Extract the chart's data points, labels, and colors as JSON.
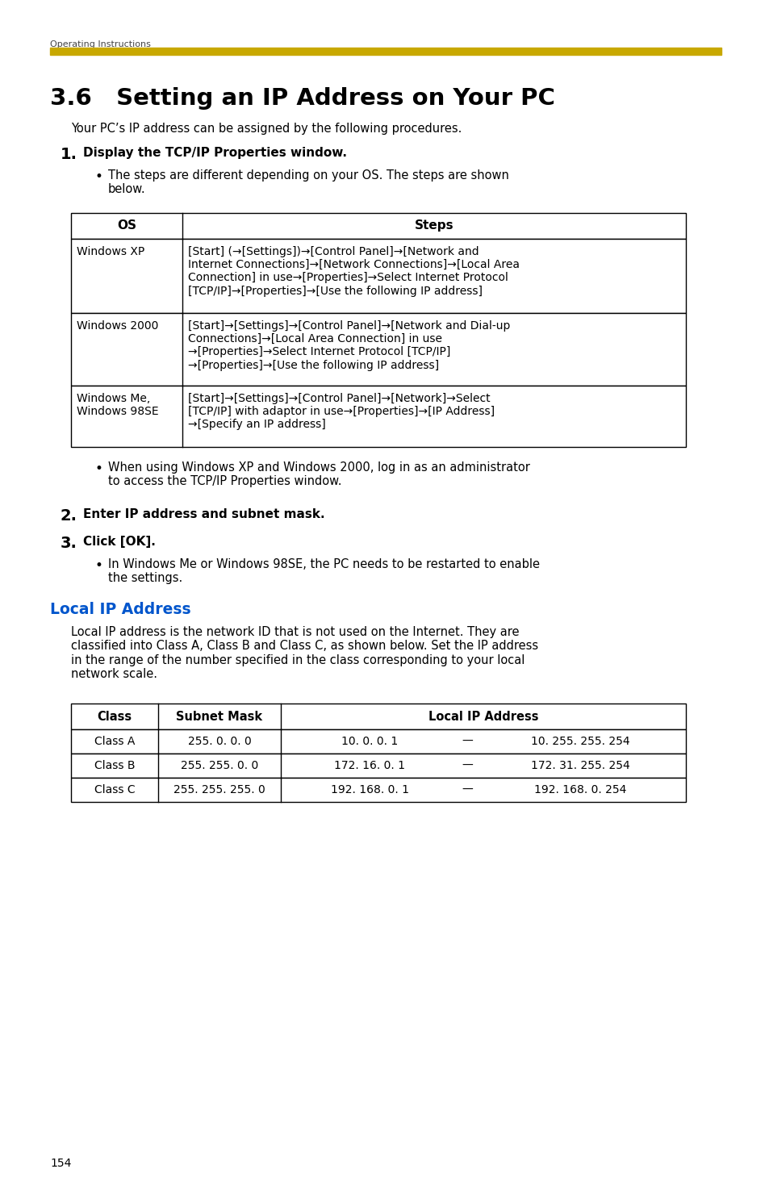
{
  "bg_color": "#ffffff",
  "header_text": "Operating Instructions",
  "bar_color": "#C8A800",
  "title": "3.6   Setting an IP Address on Your PC",
  "intro_text": "Your PC’s IP address can be assigned by the following procedures.",
  "step1_label": "1.",
  "step1_text": "Display the TCP/IP Properties window.",
  "bullet1_text": "The steps are different depending on your OS. The steps are shown\nbelow.",
  "table1_headers": [
    "OS",
    "Steps"
  ],
  "table1_rows": [
    [
      "Windows XP",
      "[Start] (→[Settings])→[Control Panel]→[Network and\nInternet Connections]→[Network Connections]→[Local Area\nConnection] in use→[Properties]→Select Internet Protocol\n[TCP/IP]→[Properties]→[Use the following IP address]"
    ],
    [
      "Windows 2000",
      "[Start]→[Settings]→[Control Panel]→[Network and Dial-up\nConnections]→[Local Area Connection] in use\n→[Properties]→Select Internet Protocol [TCP/IP]\n→[Properties]→[Use the following IP address]"
    ],
    [
      "Windows Me,\nWindows 98SE",
      "[Start]→[Settings]→[Control Panel]→[Network]→Select\n[TCP/IP] with adaptor in use→[Properties]→[IP Address]\n→[Specify an IP address]"
    ]
  ],
  "bullet2_text": "When using Windows XP and Windows 2000, log in as an administrator\nto access the TCP/IP Properties window.",
  "step2_label": "2.",
  "step2_text": "Enter IP address and subnet mask.",
  "step3_label": "3.",
  "step3_text": "Click [OK].",
  "bullet3_text": "In Windows Me or Windows 98SE, the PC needs to be restarted to enable\nthe settings.",
  "section2_title": "Local IP Address",
  "section2_color": "#0055CC",
  "section2_intro": "Local IP address is the network ID that is not used on the Internet. They are\nclassified into Class A, Class B and Class C, as shown below. Set the IP address\nin the range of the number specified in the class corresponding to your local\nnetwork scale.",
  "table2_headers": [
    "Class",
    "Subnet Mask",
    "Local IP Address"
  ],
  "table2_rows": [
    [
      "Class A",
      "255. 0. 0. 0",
      "10. 0. 0. 1",
      "—",
      "10. 255. 255. 254"
    ],
    [
      "Class B",
      "255. 255. 0. 0",
      "172. 16. 0. 1",
      "—",
      "172. 31. 255. 254"
    ],
    [
      "Class C",
      "255. 255. 255. 0",
      "192. 168. 0. 1",
      "—",
      "192. 168. 0. 254"
    ]
  ],
  "page_number": "154"
}
